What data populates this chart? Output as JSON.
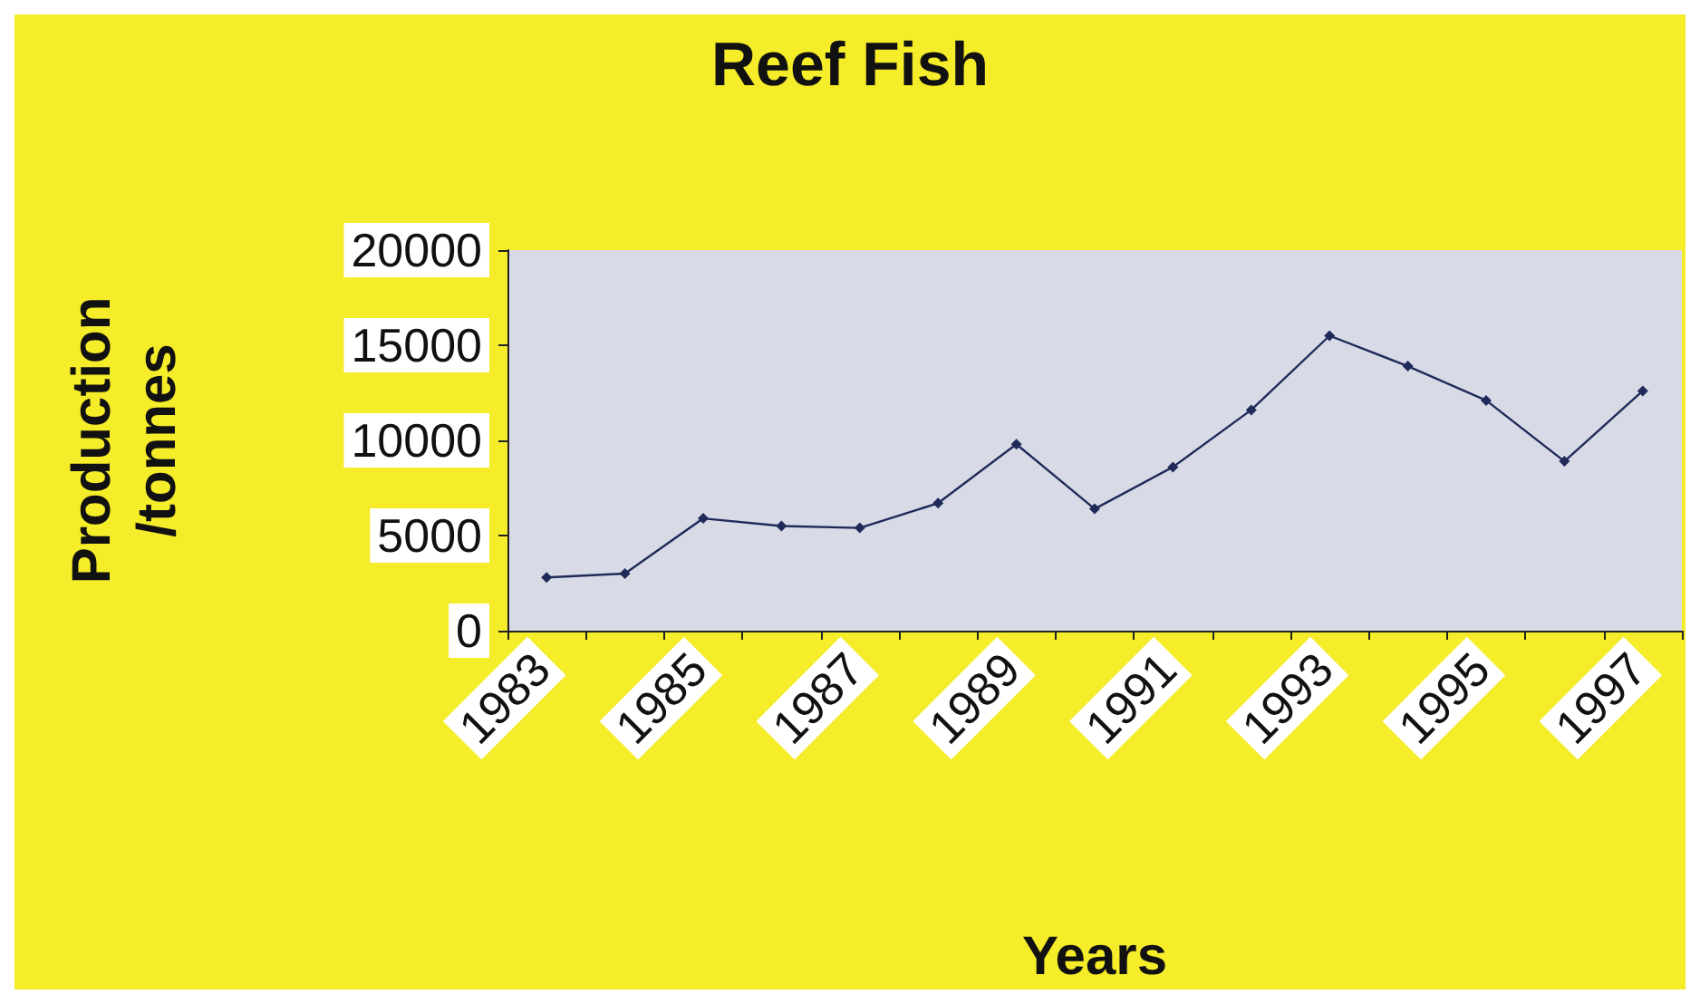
{
  "chart_data": {
    "type": "line",
    "title": "Reef Fish",
    "xlabel": "Years",
    "ylabel": "Production\n/tonnes",
    "categories": [
      "1983",
      null,
      "1985",
      null,
      "1987",
      null,
      "1989",
      null,
      "1991",
      null,
      "1993",
      null,
      "1995",
      null,
      "1997"
    ],
    "series": [
      {
        "color": "#1f2a5a",
        "values": [
          2800,
          3000,
          5900,
          5500,
          5400,
          6700,
          9800,
          6400,
          8600,
          11600,
          15500,
          13900,
          12100,
          8900,
          12600
        ]
      }
    ],
    "ylim": [
      0,
      20000
    ],
    "yticks": [
      0,
      5000,
      10000,
      15000,
      20000
    ],
    "grid": false,
    "marker": "diamond",
    "line_style": "solid"
  }
}
